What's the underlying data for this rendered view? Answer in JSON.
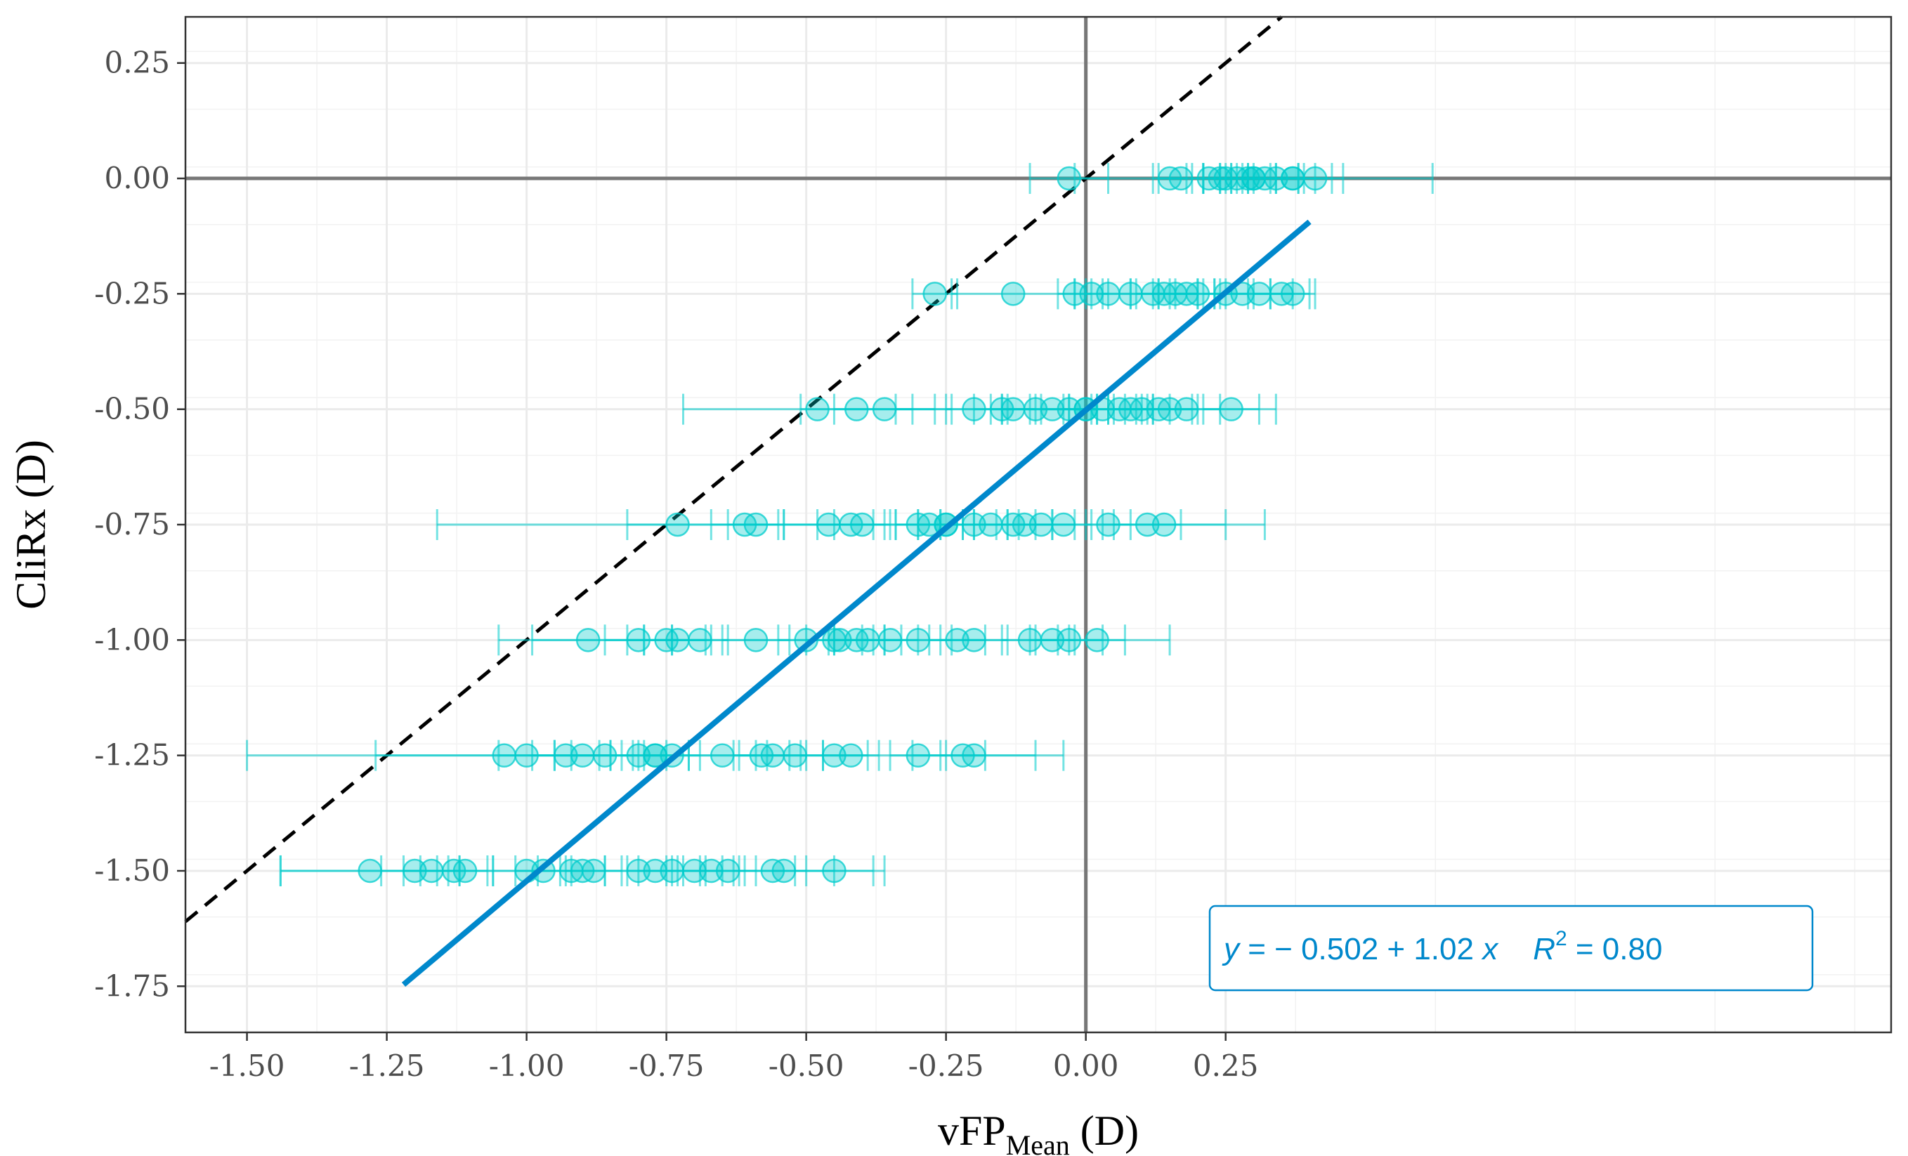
{
  "chart_data": {
    "type": "scatter",
    "title": "",
    "xlabel": "vFP",
    "xlabel_subscript": "Mean",
    "xlabel_suffix": " (D)",
    "ylabel": "CliRx (D)",
    "xlim": [
      -1.61,
      1.44
    ],
    "ylim": [
      -1.85,
      0.35
    ],
    "grid": true,
    "x_ticks": [
      -1.5,
      -1.25,
      -1.0,
      -0.75,
      -0.5,
      -0.25,
      0.0,
      0.25
    ],
    "x_tick_labels": [
      "-1.50",
      "-1.25",
      "-1.00",
      "-0.75",
      "-0.50",
      "-0.25",
      "0.00",
      "0.25"
    ],
    "y_ticks": [
      0.25,
      0.0,
      -0.25,
      -0.5,
      -0.75,
      -1.0,
      -1.25,
      -1.5,
      -1.75
    ],
    "y_tick_labels": [
      "0.25",
      "0.00",
      "-0.25",
      "-0.50",
      "-0.75",
      "-1.00",
      "-1.25",
      "-1.50",
      "-1.75"
    ],
    "reference_lines": [
      {
        "name": "x=0",
        "type": "vertical",
        "x": 0
      },
      {
        "name": "y=0",
        "type": "horizontal",
        "y": 0
      },
      {
        "name": "identity",
        "type": "identity",
        "style": "dashed",
        "color": "#000000",
        "x_range": [
          -1.61,
          0.7
        ]
      }
    ],
    "fit_line": {
      "intercept": -0.502,
      "slope": 1.02,
      "x_range": [
        -1.22,
        0.4
      ],
      "color": "#0088cc",
      "r_squared": 0.8
    },
    "equation_label": {
      "y_part": "y",
      "body": " = − 0.502 + 1.02 ",
      "x_part": "x",
      "r_part": "R",
      "r_exp": "2",
      "r_value": " = 0.80"
    },
    "point_color": "#00cccc",
    "series": [
      {
        "cliRx": 0.0,
        "points": [
          {
            "x": -0.03,
            "err": 0.07
          },
          {
            "x": 0.15,
            "err": 0.03
          },
          {
            "x": 0.17,
            "err": 0.04
          },
          {
            "x": 0.22,
            "err": 0.03
          },
          {
            "x": 0.24,
            "err": 0.03
          },
          {
            "x": 0.25,
            "err": 0.04
          },
          {
            "x": 0.27,
            "err": 0.03
          },
          {
            "x": 0.29,
            "err": 0.05
          },
          {
            "x": 0.3,
            "err": 0.04
          },
          {
            "x": 0.32,
            "err": 0.06
          },
          {
            "x": 0.34,
            "err": 0.05
          },
          {
            "x": 0.37,
            "err": 0.09
          },
          {
            "x": 0.37,
            "err": 0.04
          },
          {
            "x": 0.41,
            "err": 0.03
          },
          {
            "x": 0.3,
            "err": 0.32
          }
        ]
      },
      {
        "cliRx": -0.25,
        "points": [
          {
            "x": -0.27,
            "err": 0.04
          },
          {
            "x": -0.13,
            "err": 0.11
          },
          {
            "x": -0.02,
            "err": 0.03
          },
          {
            "x": 0.01,
            "err": 0.03
          },
          {
            "x": 0.04,
            "err": 0.04
          },
          {
            "x": 0.08,
            "err": 0.05
          },
          {
            "x": 0.12,
            "err": 0.03
          },
          {
            "x": 0.14,
            "err": 0.06
          },
          {
            "x": 0.16,
            "err": 0.04
          },
          {
            "x": 0.18,
            "err": 0.05
          },
          {
            "x": 0.2,
            "err": 0.04
          },
          {
            "x": 0.25,
            "err": 0.04
          },
          {
            "x": 0.28,
            "err": 0.05
          },
          {
            "x": 0.31,
            "err": 0.06
          },
          {
            "x": 0.35,
            "err": 0.05
          },
          {
            "x": 0.37,
            "err": 0.04
          }
        ]
      },
      {
        "cliRx": -0.5,
        "points": [
          {
            "x": -0.48,
            "err": 0.24
          },
          {
            "x": -0.41,
            "err": 0.1
          },
          {
            "x": -0.36,
            "err": 0.09
          },
          {
            "x": -0.2,
            "err": 0.05
          },
          {
            "x": -0.15,
            "err": 0.05
          },
          {
            "x": -0.13,
            "err": 0.04
          },
          {
            "x": -0.09,
            "err": 0.06
          },
          {
            "x": -0.06,
            "err": 0.08
          },
          {
            "x": -0.03,
            "err": 0.05
          },
          {
            "x": 0.0,
            "err": 0.04
          },
          {
            "x": 0.03,
            "err": 0.06
          },
          {
            "x": 0.06,
            "err": 0.05
          },
          {
            "x": 0.08,
            "err": 0.04
          },
          {
            "x": 0.1,
            "err": 0.05
          },
          {
            "x": 0.13,
            "err": 0.06
          },
          {
            "x": 0.15,
            "err": 0.05
          },
          {
            "x": 0.18,
            "err": 0.06
          },
          {
            "x": 0.26,
            "err": 0.05
          },
          {
            "x": 0.0,
            "err": 0.34
          }
        ]
      },
      {
        "cliRx": -0.75,
        "points": [
          {
            "x": -0.73,
            "err": 0.43
          },
          {
            "x": -0.61,
            "err": 0.06
          },
          {
            "x": -0.59,
            "err": 0.05
          },
          {
            "x": -0.46,
            "err": 0.08
          },
          {
            "x": -0.42,
            "err": 0.06
          },
          {
            "x": -0.4,
            "err": 0.05
          },
          {
            "x": -0.3,
            "err": 0.04
          },
          {
            "x": -0.28,
            "err": 0.06
          },
          {
            "x": -0.25,
            "err": 0.05
          },
          {
            "x": -0.2,
            "err": 0.06
          },
          {
            "x": -0.17,
            "err": 0.05
          },
          {
            "x": -0.13,
            "err": 0.07
          },
          {
            "x": -0.11,
            "err": 0.05
          },
          {
            "x": -0.08,
            "err": 0.06
          },
          {
            "x": -0.04,
            "err": 0.05
          },
          {
            "x": 0.04,
            "err": 0.04
          },
          {
            "x": 0.11,
            "err": 0.06
          },
          {
            "x": 0.14,
            "err": 0.11
          },
          {
            "x": -0.25,
            "err": 0.57
          }
        ]
      },
      {
        "cliRx": -1.0,
        "points": [
          {
            "x": -0.89,
            "err": 0.1
          },
          {
            "x": -0.8,
            "err": 0.06
          },
          {
            "x": -0.75,
            "err": 0.07
          },
          {
            "x": -0.73,
            "err": 0.06
          },
          {
            "x": -0.69,
            "err": 0.05
          },
          {
            "x": -0.59,
            "err": 0.06
          },
          {
            "x": -0.5,
            "err": 0.05
          },
          {
            "x": -0.44,
            "err": 0.06
          },
          {
            "x": -0.41,
            "err": 0.05
          },
          {
            "x": -0.39,
            "err": 0.06
          },
          {
            "x": -0.35,
            "err": 0.05
          },
          {
            "x": -0.3,
            "err": 0.06
          },
          {
            "x": -0.23,
            "err": 0.05
          },
          {
            "x": -0.2,
            "err": 0.06
          },
          {
            "x": -0.1,
            "err": 0.05
          },
          {
            "x": -0.06,
            "err": 0.04
          },
          {
            "x": -0.03,
            "err": 0.06
          },
          {
            "x": 0.02,
            "err": 0.05
          },
          {
            "x": -0.45,
            "err": 0.6
          }
        ]
      },
      {
        "cliRx": -1.25,
        "points": [
          {
            "x": -1.04,
            "err": 0.23
          },
          {
            "x": -1.0,
            "err": 0.05
          },
          {
            "x": -0.93,
            "err": 0.06
          },
          {
            "x": -0.9,
            "err": 0.05
          },
          {
            "x": -0.86,
            "err": 0.06
          },
          {
            "x": -0.8,
            "err": 0.05
          },
          {
            "x": -0.77,
            "err": 0.06
          },
          {
            "x": -0.74,
            "err": 0.05
          },
          {
            "x": -0.65,
            "err": 0.06
          },
          {
            "x": -0.58,
            "err": 0.05
          },
          {
            "x": -0.56,
            "err": 0.06
          },
          {
            "x": -0.52,
            "err": 0.05
          },
          {
            "x": -0.45,
            "err": 0.06
          },
          {
            "x": -0.42,
            "err": 0.05
          },
          {
            "x": -0.3,
            "err": 0.05
          },
          {
            "x": -0.22,
            "err": 0.04
          },
          {
            "x": -0.2,
            "err": 0.11
          },
          {
            "x": -0.77,
            "err": 0.73
          }
        ]
      },
      {
        "cliRx": -1.5,
        "points": [
          {
            "x": -1.28,
            "err": 0.16
          },
          {
            "x": -1.2,
            "err": 0.06
          },
          {
            "x": -1.17,
            "err": 0.05
          },
          {
            "x": -1.13,
            "err": 0.06
          },
          {
            "x": -1.11,
            "err": 0.05
          },
          {
            "x": -1.0,
            "err": 0.06
          },
          {
            "x": -0.97,
            "err": 0.05
          },
          {
            "x": -0.92,
            "err": 0.06
          },
          {
            "x": -0.88,
            "err": 0.05
          },
          {
            "x": -0.8,
            "err": 0.06
          },
          {
            "x": -0.77,
            "err": 0.05
          },
          {
            "x": -0.74,
            "err": 0.06
          },
          {
            "x": -0.7,
            "err": 0.05
          },
          {
            "x": -0.67,
            "err": 0.06
          },
          {
            "x": -0.64,
            "err": 0.05
          },
          {
            "x": -0.56,
            "err": 0.06
          },
          {
            "x": -0.54,
            "err": 0.09
          },
          {
            "x": -0.45,
            "err": 0.07
          },
          {
            "x": -0.9,
            "err": 0.54
          }
        ]
      }
    ]
  }
}
